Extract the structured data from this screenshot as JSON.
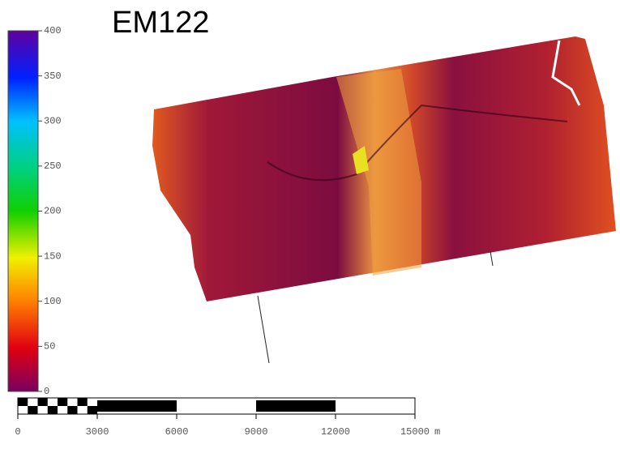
{
  "title": "EM122",
  "colorbar": {
    "lim": [
      0,
      400
    ],
    "ticks": [
      0,
      50,
      100,
      150,
      200,
      250,
      300,
      350,
      400
    ]
  },
  "scale_bar": {
    "lim": [
      0,
      15000
    ],
    "ticks": [
      0,
      3000,
      6000,
      9000,
      12000,
      15000
    ],
    "unit": "m"
  }
}
